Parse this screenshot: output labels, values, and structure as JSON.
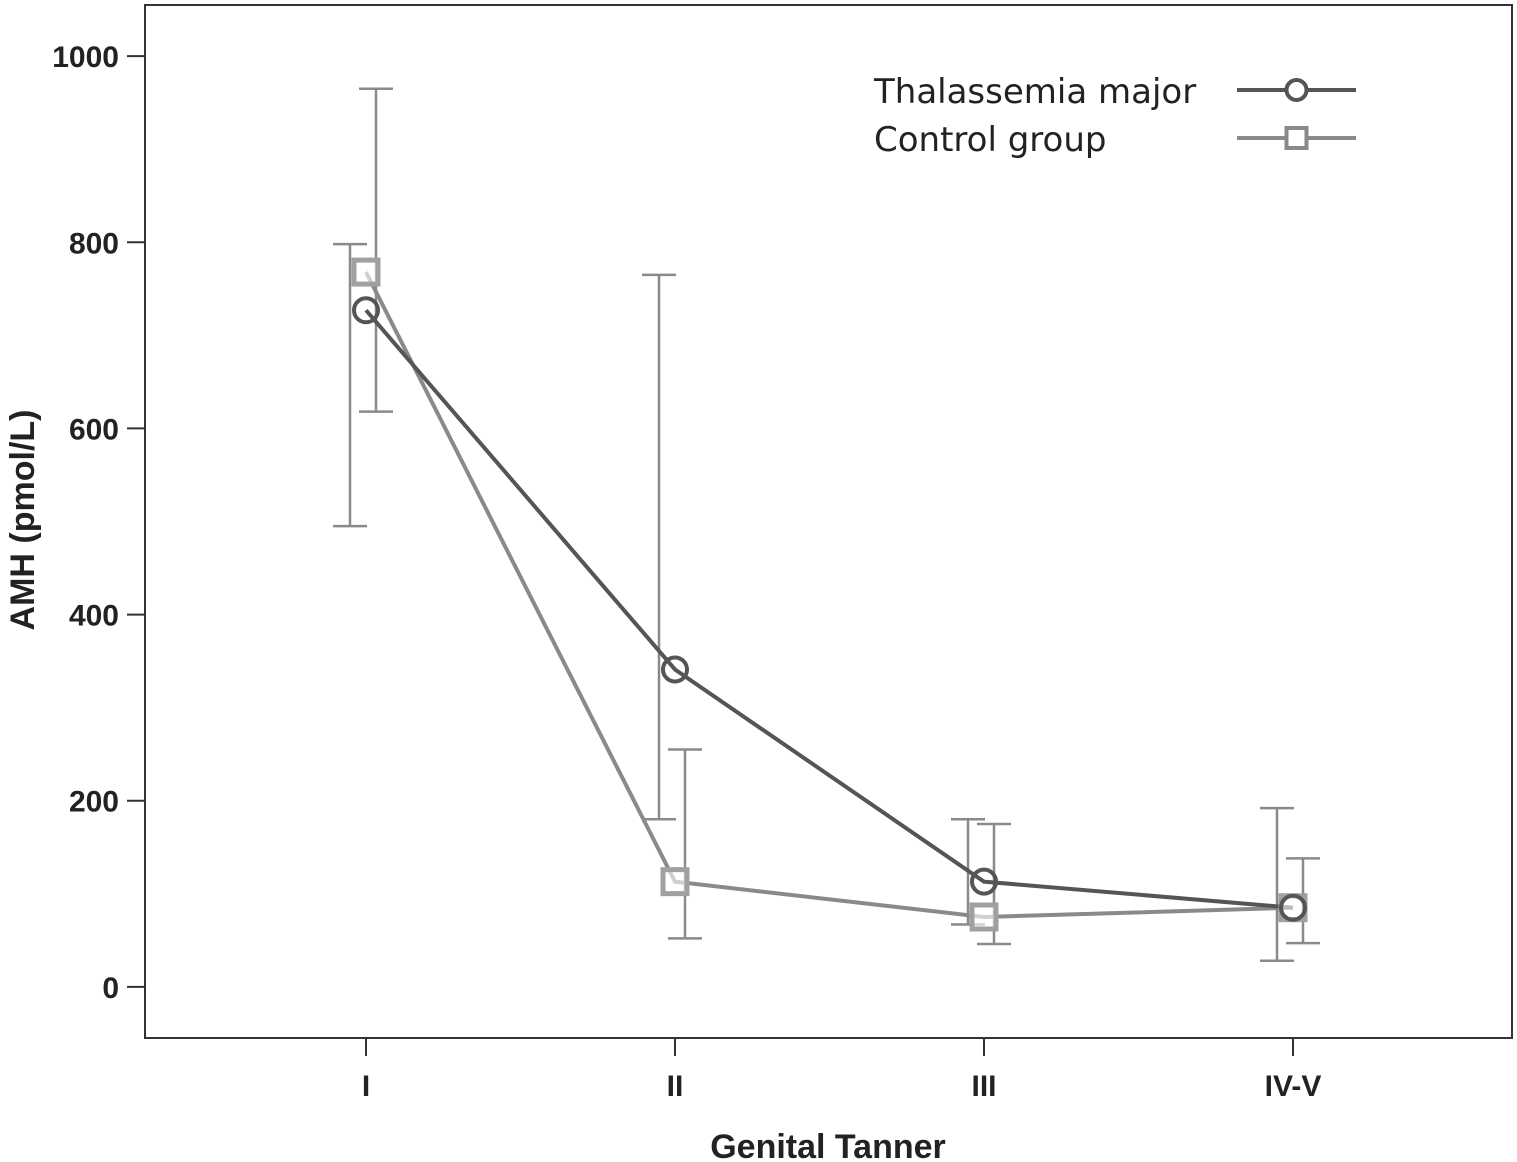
{
  "chart_data": {
    "type": "line",
    "xlabel": "Genital Tanner",
    "ylabel": "AMH (pmol/L)",
    "categories": [
      "I",
      "II",
      "III",
      "IV-V"
    ],
    "ylim": [
      -55,
      1055
    ],
    "yticks": [
      0,
      200,
      400,
      600,
      800,
      1000
    ],
    "legend_position": "top-right",
    "grid": false,
    "series": [
      {
        "name": "Thalassemia major",
        "marker": "circle",
        "color": "#555555",
        "values": [
          727,
          341,
          113,
          85
        ],
        "error_low": [
          495,
          180,
          67,
          28
        ],
        "error_high": [
          798,
          765,
          180,
          192
        ]
      },
      {
        "name": "Control group",
        "marker": "square",
        "color": "#8a8a8a",
        "values": [
          768,
          113,
          75,
          85
        ],
        "error_low": [
          618,
          52,
          46,
          47
        ],
        "error_high": [
          965,
          255,
          175,
          138
        ]
      }
    ]
  }
}
